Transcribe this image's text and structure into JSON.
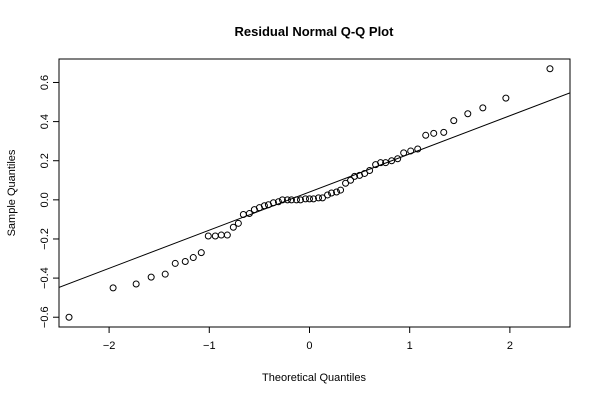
{
  "chart_data": {
    "type": "scatter",
    "title": "Residual Normal Q-Q Plot",
    "xlabel": "Theoretical Quantiles",
    "ylabel": "Sample Quantiles",
    "xlim": [
      -2.5,
      2.6
    ],
    "ylim": [
      -0.65,
      0.72
    ],
    "xticks": [
      -2,
      -1,
      0,
      1,
      2
    ],
    "xtick_labels": [
      "−2",
      "−1",
      "0",
      "1",
      "2"
    ],
    "yticks": [
      -0.6,
      -0.4,
      -0.2,
      0.0,
      0.2,
      0.4,
      0.6
    ],
    "ytick_labels": [
      "−0.6",
      "−0.4",
      "−0.2",
      "0.0",
      "0.2",
      "0.4",
      "0.6"
    ],
    "grid": false,
    "reference_line": {
      "intercept": 0.04,
      "slope": 0.195
    },
    "points": [
      [
        -2.4,
        -0.6
      ],
      [
        -1.96,
        -0.45
      ],
      [
        -1.73,
        -0.43
      ],
      [
        -1.58,
        -0.395
      ],
      [
        -1.44,
        -0.38
      ],
      [
        -1.34,
        -0.325
      ],
      [
        -1.24,
        -0.315
      ],
      [
        -1.16,
        -0.295
      ],
      [
        -1.08,
        -0.27
      ],
      [
        -1.01,
        -0.185
      ],
      [
        -0.94,
        -0.185
      ],
      [
        -0.88,
        -0.18
      ],
      [
        -0.82,
        -0.18
      ],
      [
        -0.76,
        -0.14
      ],
      [
        -0.71,
        -0.12
      ],
      [
        -0.66,
        -0.075
      ],
      [
        -0.6,
        -0.07
      ],
      [
        -0.55,
        -0.05
      ],
      [
        -0.5,
        -0.04
      ],
      [
        -0.45,
        -0.03
      ],
      [
        -0.41,
        -0.025
      ],
      [
        -0.36,
        -0.015
      ],
      [
        -0.31,
        -0.01
      ],
      [
        -0.27,
        0.0
      ],
      [
        -0.22,
        0.0
      ],
      [
        -0.18,
        0.0
      ],
      [
        -0.13,
        0.0
      ],
      [
        -0.09,
        0.0
      ],
      [
        -0.04,
        0.005
      ],
      [
        0.0,
        0.005
      ],
      [
        0.04,
        0.005
      ],
      [
        0.09,
        0.01
      ],
      [
        0.13,
        0.01
      ],
      [
        0.18,
        0.025
      ],
      [
        0.22,
        0.035
      ],
      [
        0.27,
        0.04
      ],
      [
        0.31,
        0.05
      ],
      [
        0.36,
        0.085
      ],
      [
        0.41,
        0.1
      ],
      [
        0.45,
        0.12
      ],
      [
        0.5,
        0.125
      ],
      [
        0.55,
        0.135
      ],
      [
        0.6,
        0.15
      ],
      [
        0.66,
        0.18
      ],
      [
        0.71,
        0.19
      ],
      [
        0.76,
        0.19
      ],
      [
        0.82,
        0.2
      ],
      [
        0.88,
        0.21
      ],
      [
        0.94,
        0.24
      ],
      [
        1.01,
        0.25
      ],
      [
        1.08,
        0.26
      ],
      [
        1.16,
        0.33
      ],
      [
        1.24,
        0.34
      ],
      [
        1.34,
        0.345
      ],
      [
        1.44,
        0.405
      ],
      [
        1.58,
        0.44
      ],
      [
        1.73,
        0.47
      ],
      [
        1.96,
        0.52
      ],
      [
        2.4,
        0.67
      ]
    ]
  }
}
